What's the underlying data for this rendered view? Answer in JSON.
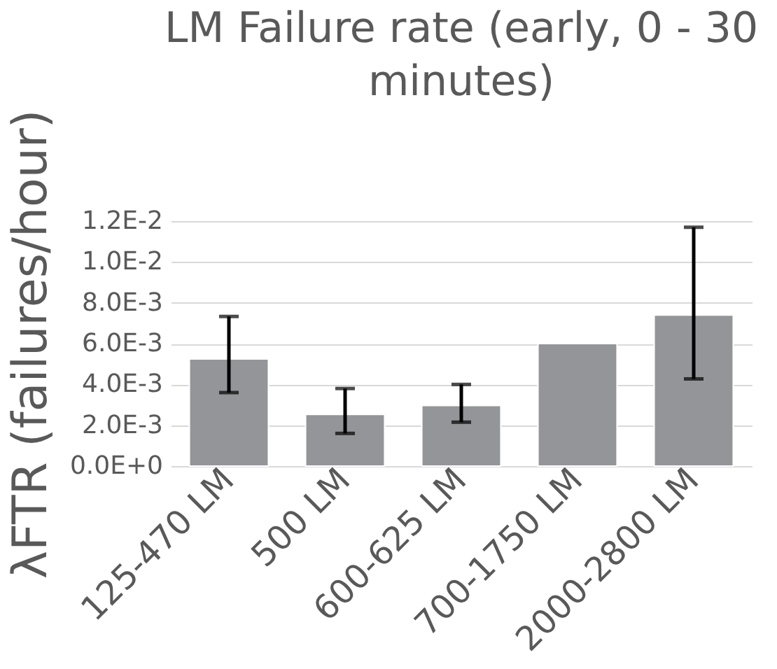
{
  "chart_data": {
    "type": "bar",
    "title": "LM Failure rate (early, 0 - 30 minutes)",
    "ylabel": "λFTR (failures/hour)",
    "categories": [
      "125-470  LM",
      "500  LM",
      "600-625  LM",
      "700-1750  LM",
      "2000-2800  LM"
    ],
    "values": [
      0.00525,
      0.00253,
      0.00297,
      0.006,
      0.0074
    ],
    "errors": [
      [
        0.0036,
        0.00733
      ],
      [
        0.0016,
        0.0038
      ],
      [
        0.00215,
        0.004
      ],
      null,
      [
        0.00427,
        0.0117
      ]
    ],
    "color": "#939598",
    "ylim": [
      0,
      0.012
    ],
    "yticks": [
      {
        "value": 0,
        "label": "0.0E+0"
      },
      {
        "value": 0.002,
        "label": "2.0E-3"
      },
      {
        "value": 0.004,
        "label": "4.0E-3"
      },
      {
        "value": 0.006,
        "label": "6.0E-3"
      },
      {
        "value": 0.008,
        "label": "8.0E-3"
      },
      {
        "value": 0.01,
        "label": "1.0E-2"
      },
      {
        "value": 0.012,
        "label": "1.2E-2"
      }
    ],
    "grid": "y"
  }
}
